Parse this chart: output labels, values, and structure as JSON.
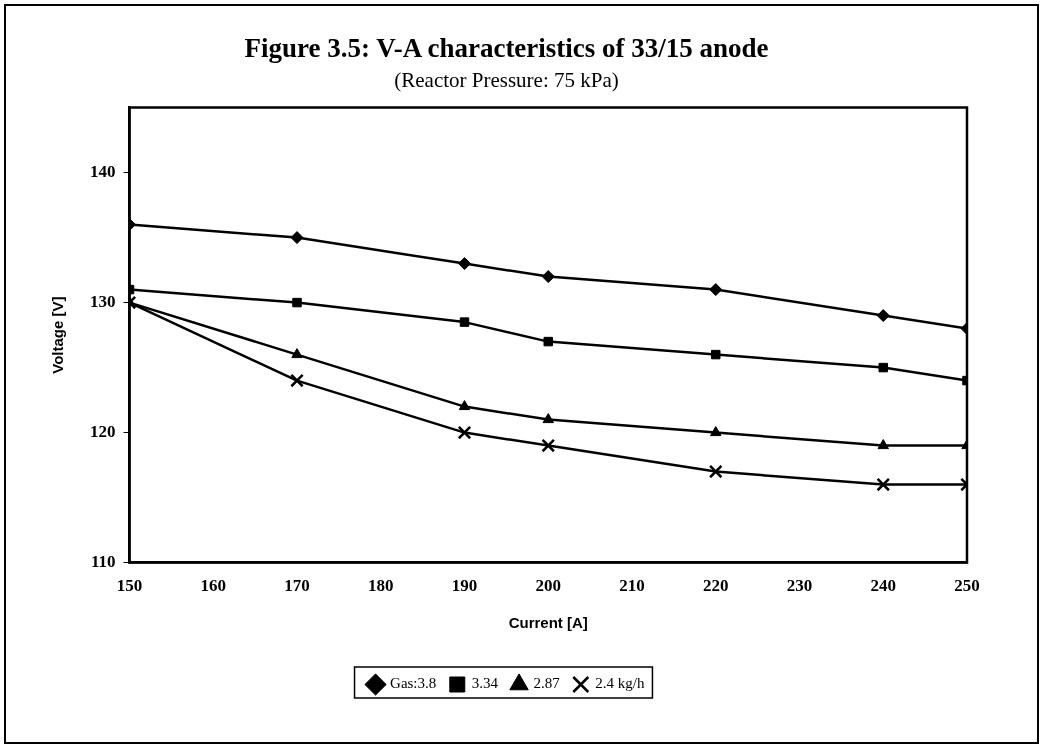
{
  "chart_data": {
    "type": "line",
    "title": "Figure 3.5: V-A characteristics of 33/15 anode",
    "subtitle": "(Reactor Pressure: 75 kPa)",
    "xlabel": "Current [A]",
    "ylabel": "Voltage [V]",
    "x": [
      150,
      170,
      190,
      200,
      220,
      240,
      250
    ],
    "series": [
      {
        "name": "Gas:3.8",
        "color": "#000000",
        "marker": "diamond",
        "values": [
          136,
          135,
          133,
          132,
          131,
          129,
          128
        ]
      },
      {
        "name": "3.34",
        "color": "#000000",
        "marker": "square",
        "values": [
          131,
          130,
          128.5,
          127,
          126,
          125,
          124
        ]
      },
      {
        "name": "2.87",
        "color": "#000000",
        "marker": "triangle",
        "values": [
          130,
          126,
          122,
          121,
          120,
          119,
          119
        ]
      },
      {
        "name": "2.4 kg/h",
        "color": "#000000",
        "marker": "cross",
        "values": [
          130,
          124,
          120,
          119,
          117,
          116,
          116
        ]
      }
    ],
    "xlim": [
      150,
      250
    ],
    "xticks": [
      150,
      160,
      170,
      180,
      190,
      200,
      210,
      220,
      230,
      240,
      250
    ],
    "ylim": [
      110,
      145
    ],
    "yticks": [
      110,
      120,
      130,
      140
    ],
    "grid": false,
    "legend": "bottom",
    "line_style": "solid"
  }
}
